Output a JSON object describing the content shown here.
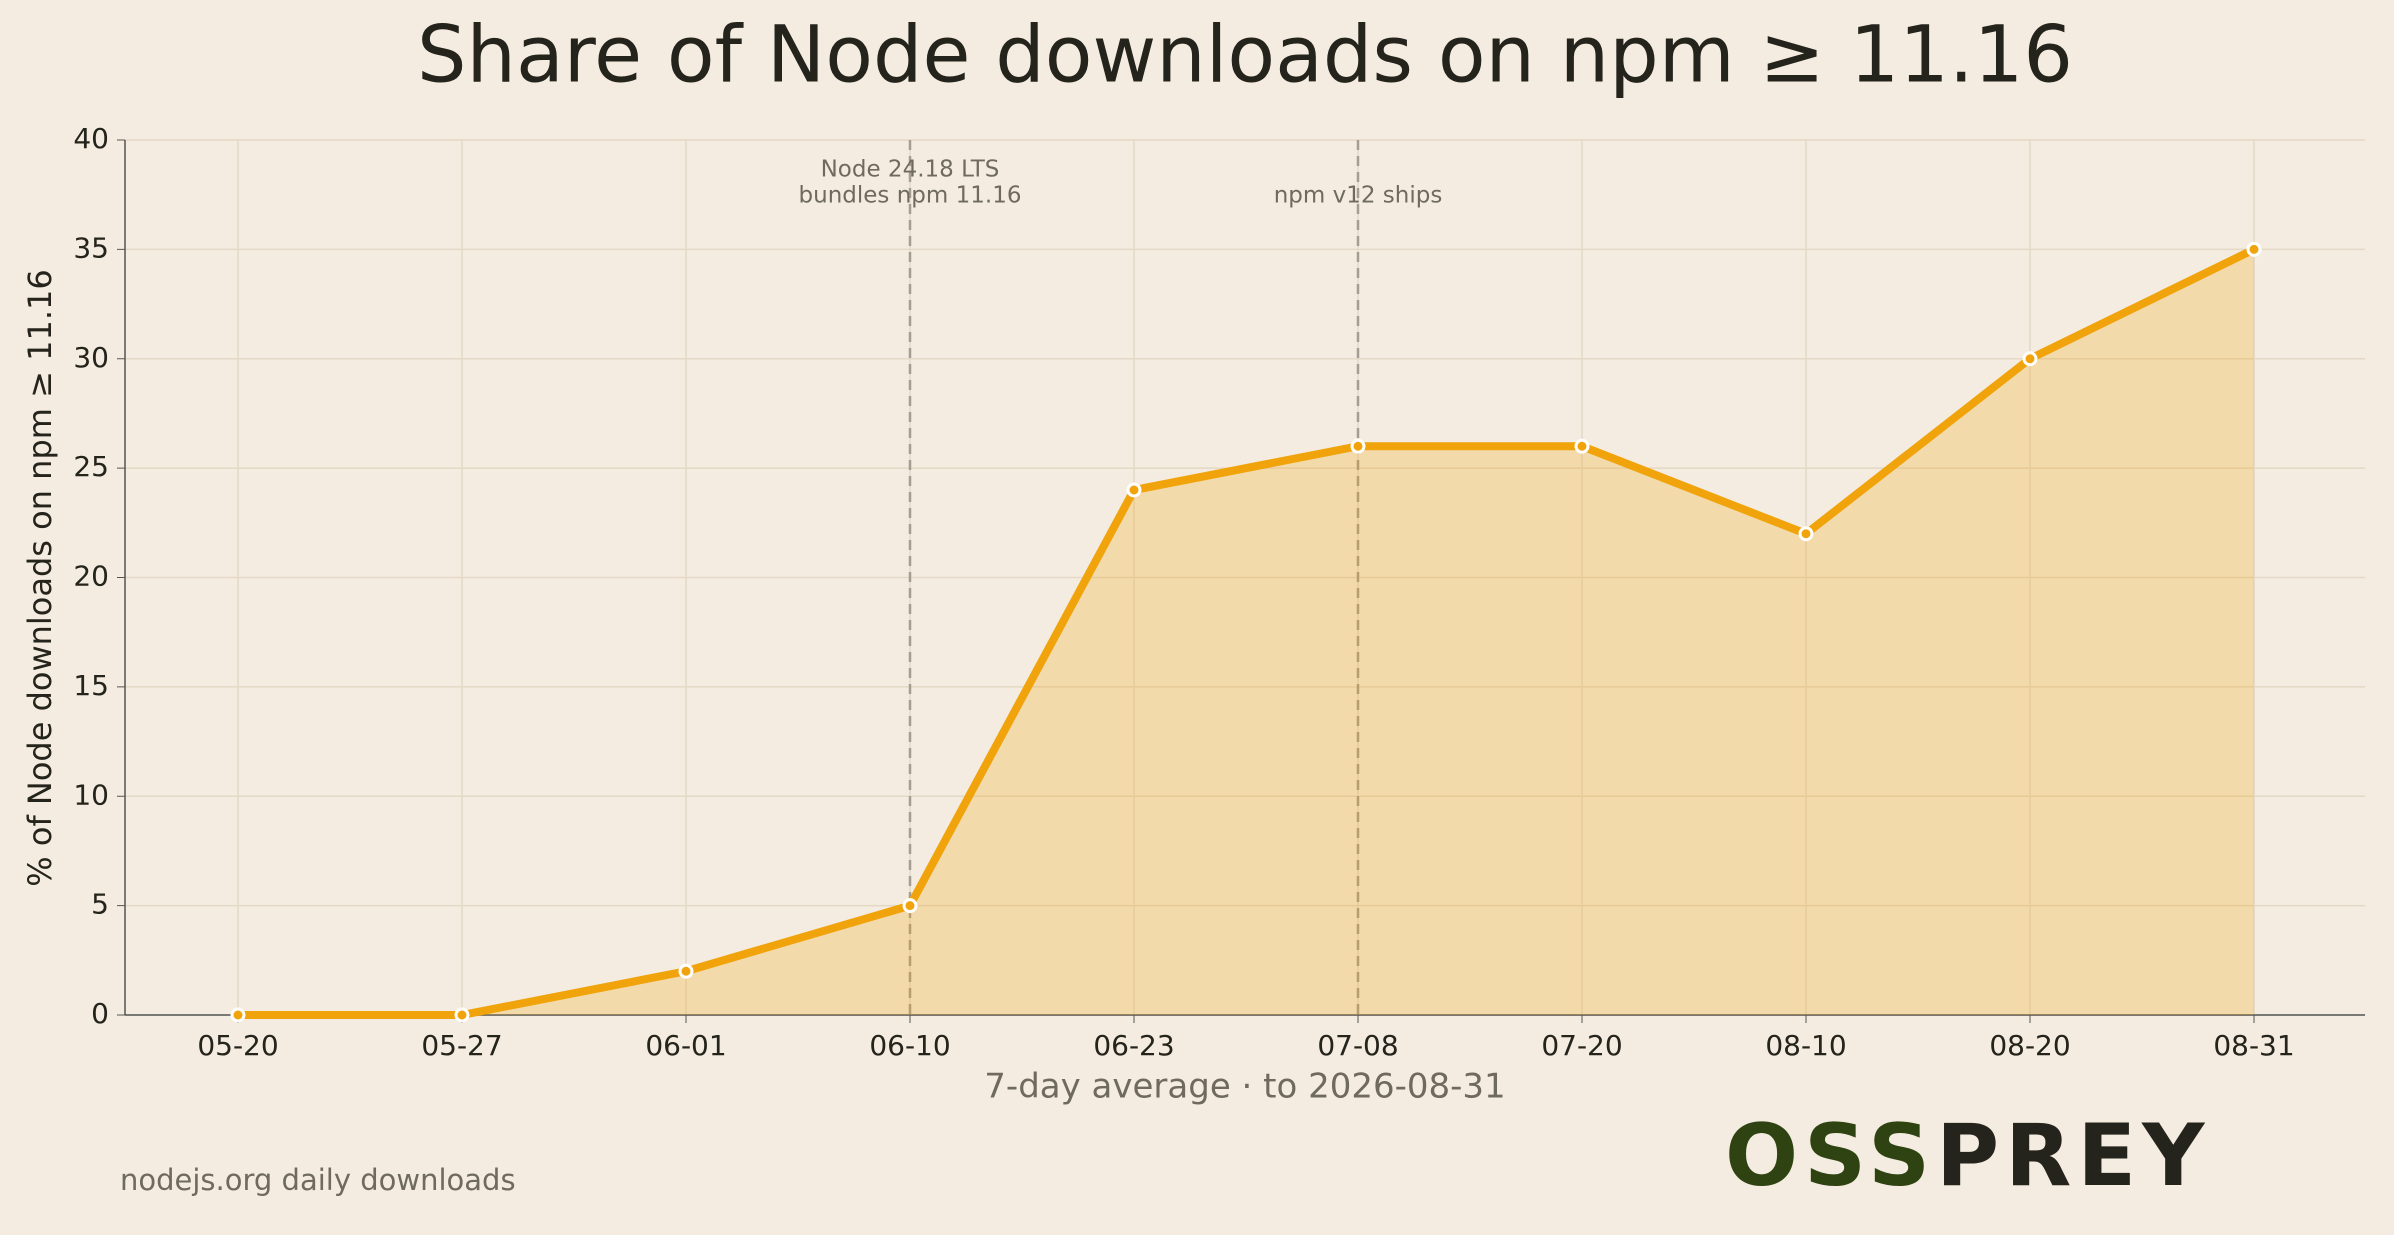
{
  "chart_data": {
    "type": "line",
    "title": "Share of Node downloads on npm ≥ 11.16",
    "y_label": "% of Node downloads on npm ≥ 11.16",
    "x_label": "7-day average · to 2026-08-31",
    "source": "nodejs.org daily downloads",
    "logo": [
      "OSS",
      "PREY"
    ],
    "categories": [
      "05-20",
      "05-27",
      "06-01",
      "06-10",
      "06-23",
      "07-08",
      "07-20",
      "08-10",
      "08-20",
      "08-31"
    ],
    "series": [
      {
        "name": "share",
        "color": "#f0a30a",
        "values": [
          0,
          0,
          2,
          5,
          24,
          26,
          26,
          22,
          30,
          35
        ]
      }
    ],
    "ylim": [
      0,
      40
    ],
    "yticks": [
      0,
      5,
      10,
      15,
      20,
      25,
      30,
      35,
      40
    ],
    "grid": true,
    "annotations": [
      {
        "at": "06-10",
        "text": [
          "Node 24.18 LTS",
          "bundles npm 11.16"
        ]
      },
      {
        "at": "07-08",
        "text": [
          "npm v12 ships"
        ]
      }
    ]
  }
}
